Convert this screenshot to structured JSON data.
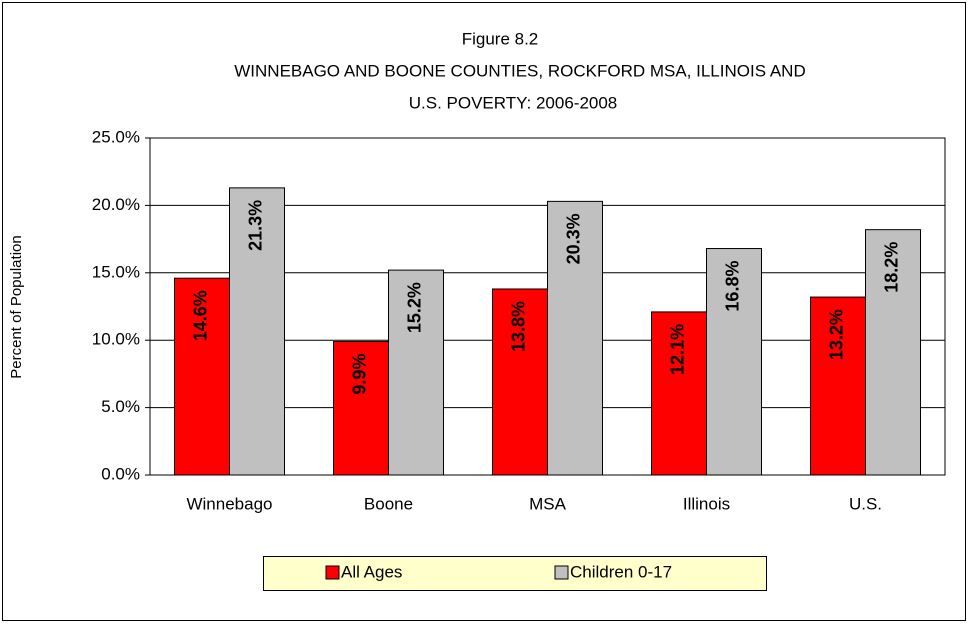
{
  "chart_data": {
    "type": "bar",
    "title": [
      "Figure 8.2",
      "WINNEBAGO AND BOONE COUNTIES, ROCKFORD MSA, ILLINOIS AND",
      "U.S. POVERTY:  2006-2008"
    ],
    "y_label": "Percent of Population",
    "categories": [
      "Winnebago",
      "Boone",
      "MSA",
      "Illinois",
      "U.S."
    ],
    "series": [
      {
        "name": "All Ages",
        "color": "#ff0000",
        "label_color": "#ffffff",
        "values": [
          14.6,
          9.9,
          13.8,
          12.1,
          13.2
        ],
        "value_labels": [
          "14.6%",
          "9.9%",
          "13.8%",
          "12.1%",
          "13.2%"
        ]
      },
      {
        "name": "Children 0-17",
        "color": "#c0c0c0",
        "label_color": "#000000",
        "values": [
          21.3,
          15.2,
          20.3,
          16.8,
          18.2
        ],
        "value_labels": [
          "21.3%",
          "15.2%",
          "20.3%",
          "16.8%",
          "18.2%"
        ]
      }
    ],
    "ylim": [
      0,
      25
    ],
    "yticks": [
      {
        "value": 0,
        "label": "0.0%"
      },
      {
        "value": 5,
        "label": "5.0%"
      },
      {
        "value": 10,
        "label": "10.0%"
      },
      {
        "value": 15,
        "label": "15.0%"
      },
      {
        "value": 20,
        "label": "20.0%"
      },
      {
        "value": 25,
        "label": "25.0%"
      }
    ],
    "grid": true,
    "legend": "bottom"
  }
}
